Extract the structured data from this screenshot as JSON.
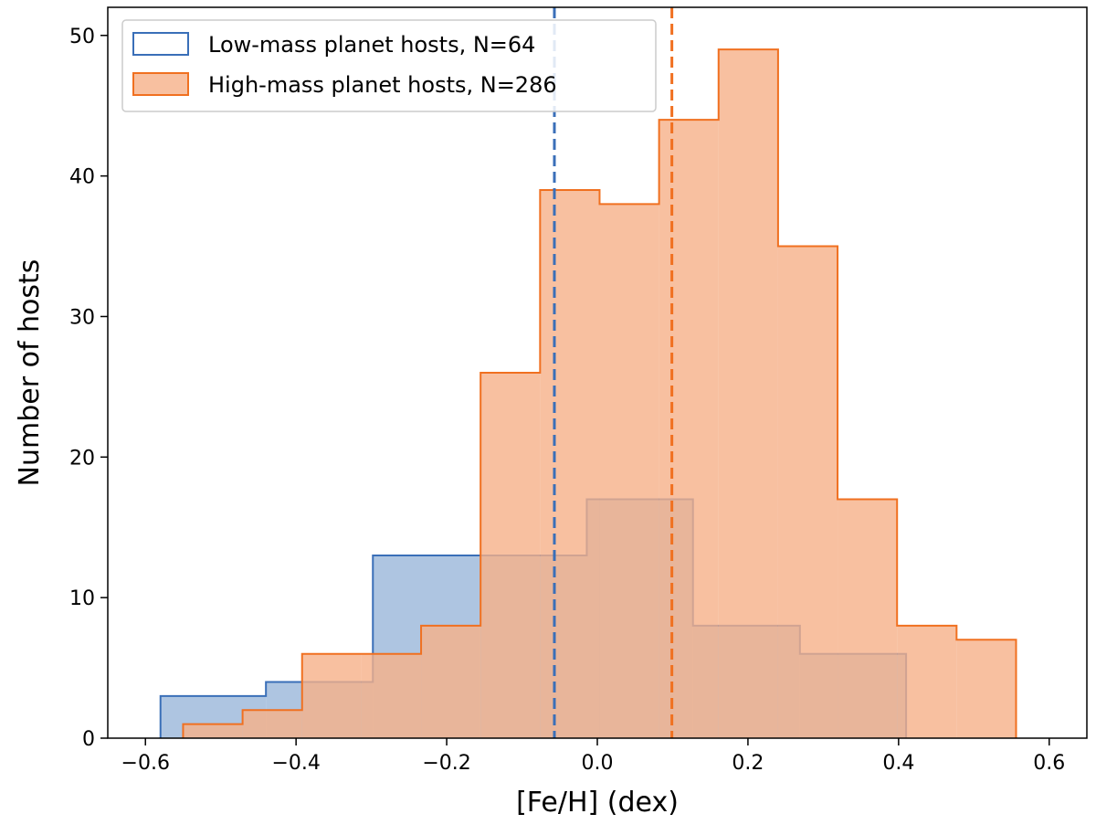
{
  "chart_data": {
    "type": "histogram",
    "title": "",
    "xlabel": "[Fe/H] (dex)",
    "ylabel": "Number of hosts",
    "xlim": [
      -0.65,
      0.65
    ],
    "ylim": [
      0,
      52
    ],
    "xticks": [
      -0.6,
      -0.4,
      -0.2,
      0.0,
      0.2,
      0.4,
      0.6
    ],
    "xtick_labels": [
      "−0.6",
      "−0.4",
      "−0.2",
      "0.0",
      "0.2",
      "0.4",
      "0.6"
    ],
    "yticks": [
      0,
      10,
      20,
      30,
      40,
      50
    ],
    "ytick_labels": [
      "0",
      "10",
      "20",
      "30",
      "40",
      "50"
    ],
    "legend_position": "top-left",
    "series": [
      {
        "name": "Low-mass planet hosts, N=64",
        "edge_color": "#3a6fb8",
        "fill_color": "#9ab6da",
        "fill_opacity": 0.8,
        "bin_edges": [
          -0.58,
          -0.44,
          -0.298,
          -0.156,
          -0.014,
          0.127,
          0.269,
          0.41
        ],
        "counts": [
          3,
          4,
          13,
          13,
          17,
          8,
          6
        ],
        "median": -0.057,
        "median_color": "#3a6fb8"
      },
      {
        "name": "High-mass planet hosts, N=286",
        "edge_color": "#f07020",
        "fill_color": "#f6b088",
        "fill_opacity": 0.8,
        "bin_edges": [
          -0.55,
          -0.471,
          -0.392,
          -0.313,
          -0.234,
          -0.155,
          -0.076,
          0.003,
          0.082,
          0.161,
          0.24,
          0.319,
          0.398,
          0.477,
          0.556
        ],
        "counts": [
          1,
          2,
          6,
          6,
          8,
          26,
          39,
          38,
          44,
          49,
          35,
          17,
          8,
          7
        ],
        "median": 0.099,
        "median_color": "#f07020"
      }
    ]
  }
}
